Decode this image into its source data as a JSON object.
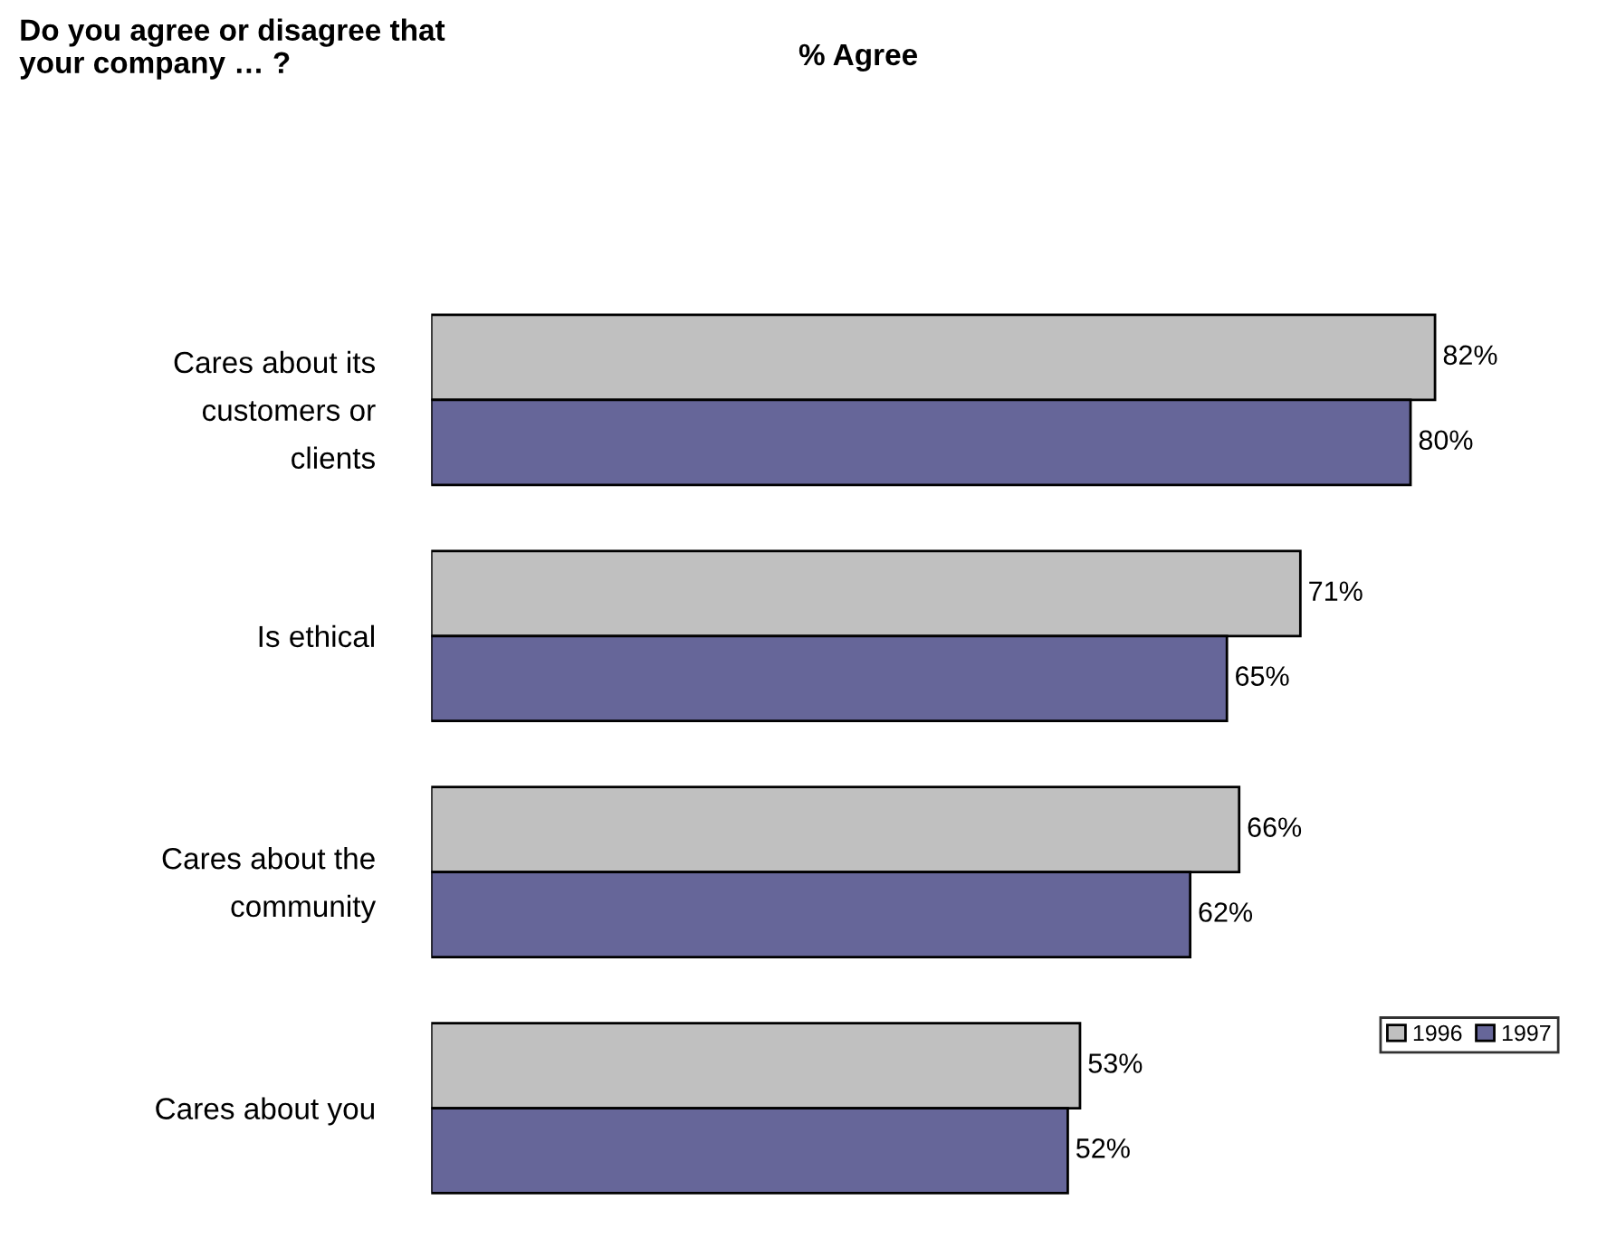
{
  "chart_data": {
    "type": "bar",
    "orientation": "horizontal",
    "title": "Do you agree or disagree that\nyour company … ?",
    "subtitle": "% Agree",
    "categories": [
      "Cares about its\ncustomers or\nclients",
      "Is ethical",
      "Cares about the\ncommunity",
      "Cares about you"
    ],
    "series": [
      {
        "name": "1996",
        "color": "#c0c0c0",
        "values": [
          82,
          71,
          66,
          53
        ],
        "value_labels": [
          "82%",
          "71%",
          "66%",
          "53%"
        ]
      },
      {
        "name": "1997",
        "color": "#666699",
        "values": [
          80,
          65,
          62,
          52
        ],
        "value_labels": [
          "80%",
          "65%",
          "62%",
          "52%"
        ]
      }
    ],
    "tick_labels": "y",
    "grid": false,
    "legend": "right"
  }
}
